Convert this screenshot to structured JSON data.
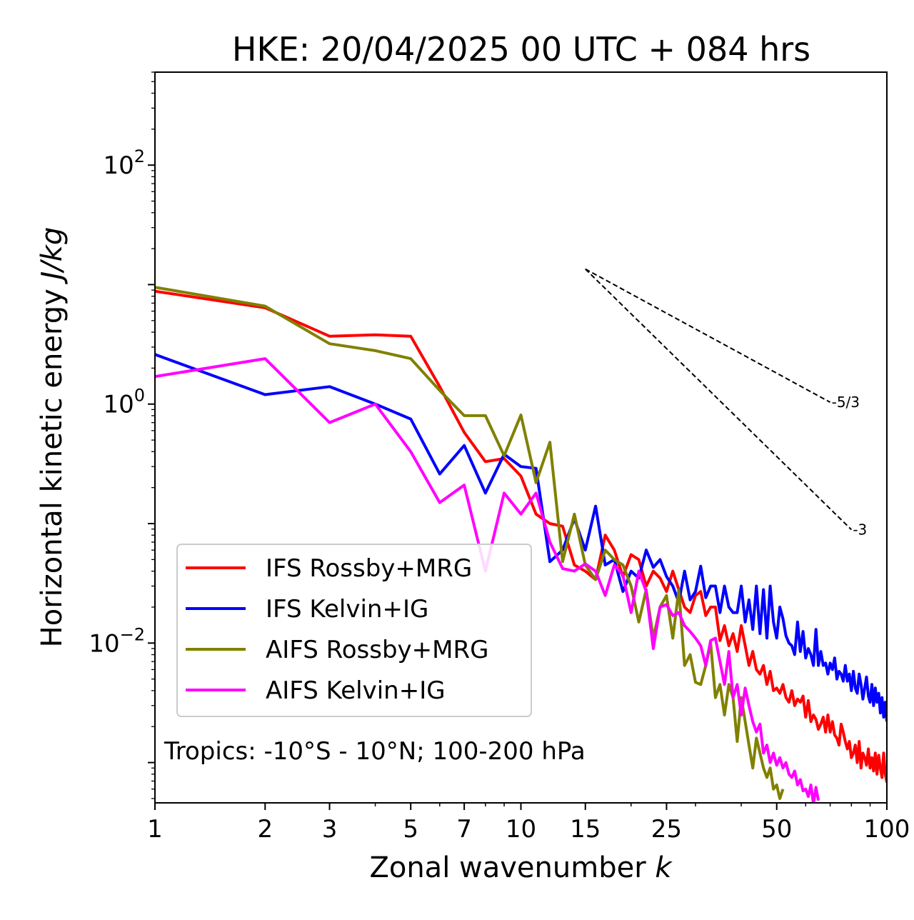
{
  "chart_data": {
    "type": "line",
    "title": "HKE: 20/04/2025 00 UTC + 084 hrs",
    "xlabel": "Zonal wavenumber",
    "xlabel_var": "k",
    "ylabel": "Horizontal kinetic energy",
    "ylabel_unit": "J/kg",
    "xscale": "log",
    "yscale": "log",
    "xlim": [
      1,
      100
    ],
    "ylim": [
      0.00046,
      600
    ],
    "xticks": [
      {
        "value": 1,
        "label": "1"
      },
      {
        "value": 2,
        "label": "2"
      },
      {
        "value": 3,
        "label": "3"
      },
      {
        "value": 5,
        "label": "5"
      },
      {
        "value": 7,
        "label": "7"
      },
      {
        "value": 10,
        "label": "10"
      },
      {
        "value": 15,
        "label": "15"
      },
      {
        "value": 25,
        "label": "25"
      },
      {
        "value": 50,
        "label": "50"
      },
      {
        "value": 100,
        "label": "100"
      }
    ],
    "yticks": [
      {
        "value": 0.01,
        "base": "10",
        "exp": "−2"
      },
      {
        "value": 1,
        "base": "10",
        "exp": "0"
      },
      {
        "value": 100,
        "base": "10",
        "exp": "2"
      }
    ],
    "annotation": "Tropics: -10°S - 10°N; 100-200 hPa",
    "legend_position": "lower-left",
    "reference_slopes": [
      {
        "label": "-5/3",
        "slope": -1.6667,
        "x0": 15,
        "y0": 13.5,
        "x1": 70
      },
      {
        "label": "-3",
        "slope": -3,
        "x0": 15,
        "y0": 13.5,
        "x1": 80
      }
    ],
    "series": [
      {
        "name": "IFS Rossby+MRG",
        "color": "#ff0000",
        "x": [
          1,
          2,
          3,
          4,
          5,
          6,
          7,
          8,
          9,
          10,
          11,
          12,
          13,
          14,
          15,
          16,
          17,
          18,
          19,
          20,
          21,
          22,
          23,
          24,
          25,
          26,
          27,
          28,
          29,
          30,
          31,
          32,
          33,
          34,
          35,
          36,
          37,
          38,
          39,
          40,
          41,
          42,
          43,
          44,
          45,
          46,
          47,
          48,
          49,
          50,
          51,
          52,
          53,
          54,
          55,
          56,
          57,
          58,
          59,
          60,
          61,
          62,
          63,
          64,
          65,
          66,
          67,
          68,
          69,
          70,
          71,
          72,
          73,
          74,
          75,
          76,
          77,
          78,
          79,
          80,
          81,
          82,
          83,
          84,
          85,
          86,
          87,
          88,
          89,
          90,
          91,
          92,
          93,
          94,
          95,
          96,
          97,
          98,
          99,
          100
        ],
        "y": [
          8.8,
          6.4,
          3.7,
          3.8,
          3.7,
          1.4,
          0.58,
          0.33,
          0.35,
          0.25,
          0.12,
          0.1,
          0.095,
          0.045,
          0.04,
          0.034,
          0.08,
          0.06,
          0.036,
          0.055,
          0.05,
          0.03,
          0.04,
          0.035,
          0.027,
          0.04,
          0.028,
          0.02,
          0.018,
          0.025,
          0.027,
          0.017,
          0.02,
          0.02,
          0.0105,
          0.014,
          0.0095,
          0.012,
          0.0085,
          0.014,
          0.0095,
          0.0065,
          0.0085,
          0.006,
          0.0055,
          0.0065,
          0.0045,
          0.0058,
          0.004,
          0.0042,
          0.0038,
          0.0045,
          0.0035,
          0.0032,
          0.004,
          0.003,
          0.0034,
          0.0032,
          0.0036,
          0.0024,
          0.0033,
          0.0022,
          0.0025,
          0.0023,
          0.0019,
          0.0021,
          0.0024,
          0.0018,
          0.0025,
          0.0018,
          0.0022,
          0.0017,
          0.0016,
          0.0014,
          0.0021,
          0.0018,
          0.0015,
          0.0013,
          0.0015,
          0.0011,
          0.0012,
          0.0014,
          0.001,
          0.0015,
          0.0009,
          0.0012,
          0.0011,
          0.00095,
          0.0013,
          0.0009,
          0.0011,
          0.00085,
          0.0012,
          0.0008,
          0.00115,
          0.0009,
          0.00075,
          0.0012,
          0.0008,
          0.00068
        ]
      },
      {
        "name": "IFS Kelvin+IG",
        "color": "#0000ff",
        "x": [
          1,
          2,
          3,
          4,
          5,
          6,
          7,
          8,
          9,
          10,
          11,
          12,
          13,
          14,
          15,
          16,
          17,
          18,
          19,
          20,
          21,
          22,
          23,
          24,
          25,
          26,
          27,
          28,
          29,
          30,
          31,
          32,
          33,
          34,
          35,
          36,
          37,
          38,
          39,
          40,
          41,
          42,
          43,
          44,
          45,
          46,
          47,
          48,
          49,
          50,
          51,
          52,
          53,
          54,
          55,
          56,
          57,
          58,
          59,
          60,
          61,
          62,
          63,
          64,
          65,
          66,
          67,
          68,
          69,
          70,
          71,
          72,
          73,
          74,
          75,
          76,
          77,
          78,
          79,
          80,
          81,
          82,
          83,
          84,
          85,
          86,
          87,
          88,
          89,
          90,
          91,
          92,
          93,
          94,
          95,
          96,
          97,
          98,
          99,
          100
        ],
        "y": [
          2.6,
          1.2,
          1.4,
          1.0,
          0.75,
          0.26,
          0.45,
          0.18,
          0.38,
          0.3,
          0.29,
          0.048,
          0.06,
          0.11,
          0.06,
          0.14,
          0.045,
          0.05,
          0.027,
          0.04,
          0.035,
          0.06,
          0.043,
          0.05,
          0.036,
          0.03,
          0.022,
          0.04,
          0.023,
          0.027,
          0.044,
          0.024,
          0.03,
          0.03,
          0.018,
          0.03,
          0.02,
          0.018,
          0.018,
          0.03,
          0.015,
          0.023,
          0.013,
          0.03,
          0.012,
          0.028,
          0.011,
          0.03,
          0.015,
          0.011,
          0.02,
          0.016,
          0.0115,
          0.01,
          0.0095,
          0.008,
          0.015,
          0.0085,
          0.0125,
          0.0075,
          0.009,
          0.008,
          0.0065,
          0.013,
          0.0065,
          0.0085,
          0.0065,
          0.0068,
          0.0055,
          0.0068,
          0.006,
          0.0075,
          0.005,
          0.0058,
          0.0055,
          0.0048,
          0.0065,
          0.0048,
          0.0055,
          0.004,
          0.0058,
          0.0042,
          0.0038,
          0.0055,
          0.0045,
          0.0034,
          0.0042,
          0.0052,
          0.0036,
          0.0032,
          0.0045,
          0.003,
          0.0042,
          0.0032,
          0.0038,
          0.0026,
          0.0035,
          0.0024,
          0.0032,
          0.0022
        ]
      },
      {
        "name": "AIFS Rossby+MRG",
        "color": "#808000",
        "x": [
          1,
          2,
          3,
          4,
          5,
          6,
          7,
          8,
          9,
          10,
          11,
          12,
          13,
          14,
          15,
          16,
          17,
          18,
          19,
          20,
          21,
          22,
          23,
          24,
          25,
          26,
          27,
          28,
          29,
          30,
          31,
          32,
          33,
          34,
          35,
          36,
          37,
          38,
          39,
          40,
          41,
          42,
          43,
          44,
          45,
          46,
          47,
          48,
          49,
          50,
          51,
          52
        ],
        "y": [
          9.5,
          6.6,
          3.2,
          2.8,
          2.4,
          1.3,
          0.8,
          0.8,
          0.37,
          0.81,
          0.22,
          0.48,
          0.048,
          0.12,
          0.045,
          0.034,
          0.06,
          0.05,
          0.045,
          0.03,
          0.015,
          0.028,
          0.011,
          0.02,
          0.025,
          0.011,
          0.028,
          0.0065,
          0.008,
          0.0047,
          0.0045,
          0.0065,
          0.01,
          0.0035,
          0.0045,
          0.0025,
          0.0045,
          0.0035,
          0.0015,
          0.0035,
          0.0022,
          0.0014,
          0.0009,
          0.0016,
          0.0012,
          0.0009,
          0.00075,
          0.0009,
          0.0006,
          0.00065,
          0.0005,
          0.0006
        ]
      },
      {
        "name": "AIFS Kelvin+IG",
        "color": "#ff00ff",
        "x": [
          1,
          2,
          3,
          4,
          5,
          6,
          7,
          8,
          9,
          10,
          11,
          12,
          13,
          14,
          15,
          16,
          17,
          18,
          19,
          20,
          21,
          22,
          23,
          24,
          25,
          26,
          27,
          28,
          29,
          30,
          31,
          32,
          33,
          34,
          35,
          36,
          37,
          38,
          39,
          40,
          41,
          42,
          43,
          44,
          45,
          46,
          47,
          48,
          49,
          50,
          51,
          52,
          53,
          54,
          55,
          56,
          57,
          58,
          59,
          60,
          61,
          62,
          63,
          64,
          65
        ],
        "y": [
          1.7,
          2.4,
          0.7,
          1.0,
          0.4,
          0.15,
          0.21,
          0.04,
          0.18,
          0.12,
          0.18,
          0.07,
          0.042,
          0.04,
          0.046,
          0.04,
          0.025,
          0.045,
          0.037,
          0.018,
          0.04,
          0.027,
          0.009,
          0.02,
          0.021,
          0.017,
          0.018,
          0.014,
          0.0125,
          0.011,
          0.0095,
          0.0065,
          0.0105,
          0.011,
          0.007,
          0.0045,
          0.0085,
          0.0035,
          0.0045,
          0.0025,
          0.0042,
          0.003,
          0.0022,
          0.0018,
          0.0021,
          0.0012,
          0.0014,
          0.001,
          0.0012,
          0.00095,
          0.0011,
          0.0009,
          0.001,
          0.0008,
          0.00075,
          0.00085,
          0.00065,
          0.00072,
          0.00058,
          0.0006,
          0.00052,
          0.00065,
          0.00045,
          0.00062,
          0.00048
        ]
      }
    ]
  }
}
